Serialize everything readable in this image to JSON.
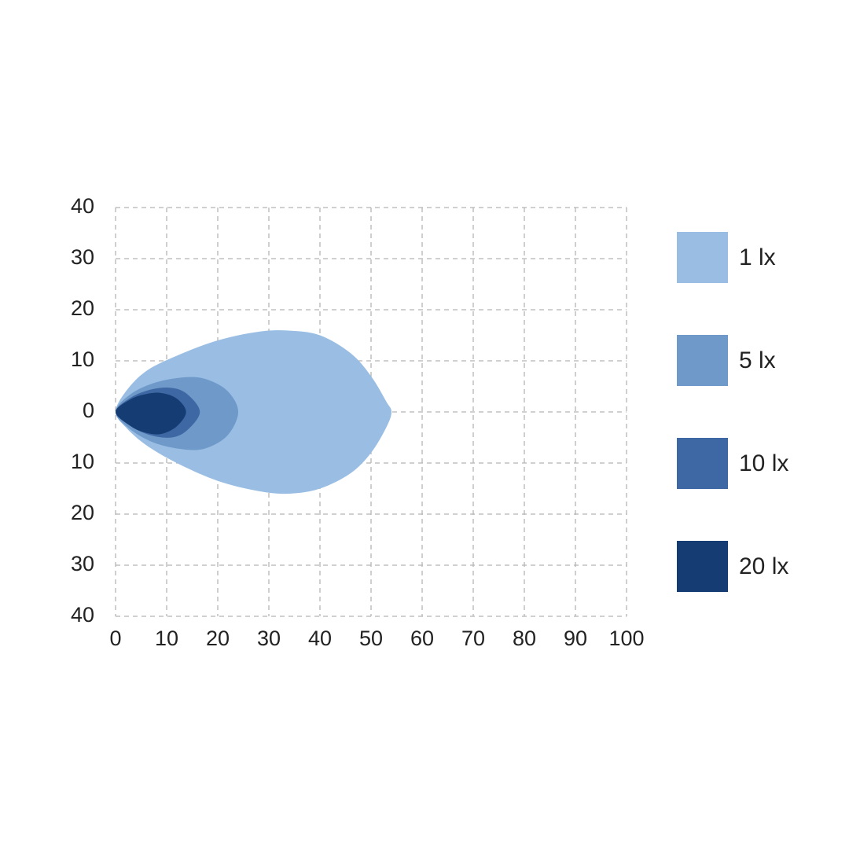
{
  "chart_data": {
    "type": "contour",
    "xlim": [
      0,
      100
    ],
    "ylim": [
      -40,
      40
    ],
    "xticks": [
      0,
      10,
      20,
      30,
      40,
      50,
      60,
      70,
      80,
      90,
      100
    ],
    "yticks": [
      40,
      30,
      20,
      10,
      0,
      {
        "value": -10,
        "label": "10"
      },
      {
        "value": -20,
        "label": "20"
      },
      {
        "value": -30,
        "label": "30"
      },
      {
        "value": -40,
        "label": "40"
      }
    ],
    "grid": true,
    "legend": "right",
    "series": [
      {
        "name": "1 lx",
        "color": "#99bde3",
        "x": [
          0,
          2,
          6,
          12,
          20,
          28,
          34,
          40,
          46,
          50,
          53,
          54,
          53,
          50,
          46,
          40,
          34,
          28,
          20,
          12,
          6,
          2
        ],
        "y": [
          0,
          4,
          8,
          11,
          14,
          15.7,
          15.9,
          15,
          11.5,
          7,
          2,
          0,
          -3,
          -8,
          -12,
          -15,
          -16,
          -15.5,
          -13.5,
          -10,
          -6.5,
          -3
        ]
      },
      {
        "name": "5 lx",
        "color": "#6e99c9",
        "x": [
          0,
          3,
          8,
          14,
          18,
          22,
          24,
          22,
          18,
          14,
          8,
          3
        ],
        "y": [
          0,
          3.5,
          5.8,
          6.8,
          6.3,
          4,
          0,
          -4.5,
          -7,
          -7.4,
          -6.2,
          -3.5
        ]
      },
      {
        "name": "10 lx",
        "color": "#3e68a3",
        "x": [
          0,
          3,
          7,
          11,
          14,
          16.5,
          14,
          11,
          7,
          3
        ],
        "y": [
          0,
          2.8,
          4.4,
          4.7,
          3.5,
          0,
          -3.6,
          -5,
          -4.6,
          -2.8
        ]
      },
      {
        "name": "20 lx",
        "color": "#163d73",
        "x": [
          0,
          3,
          6,
          9,
          12,
          13.8,
          12,
          9,
          6,
          3
        ],
        "y": [
          0,
          2.5,
          3.5,
          3.7,
          2.6,
          0,
          -2.8,
          -4.3,
          -4.1,
          -2.8
        ]
      }
    ]
  }
}
